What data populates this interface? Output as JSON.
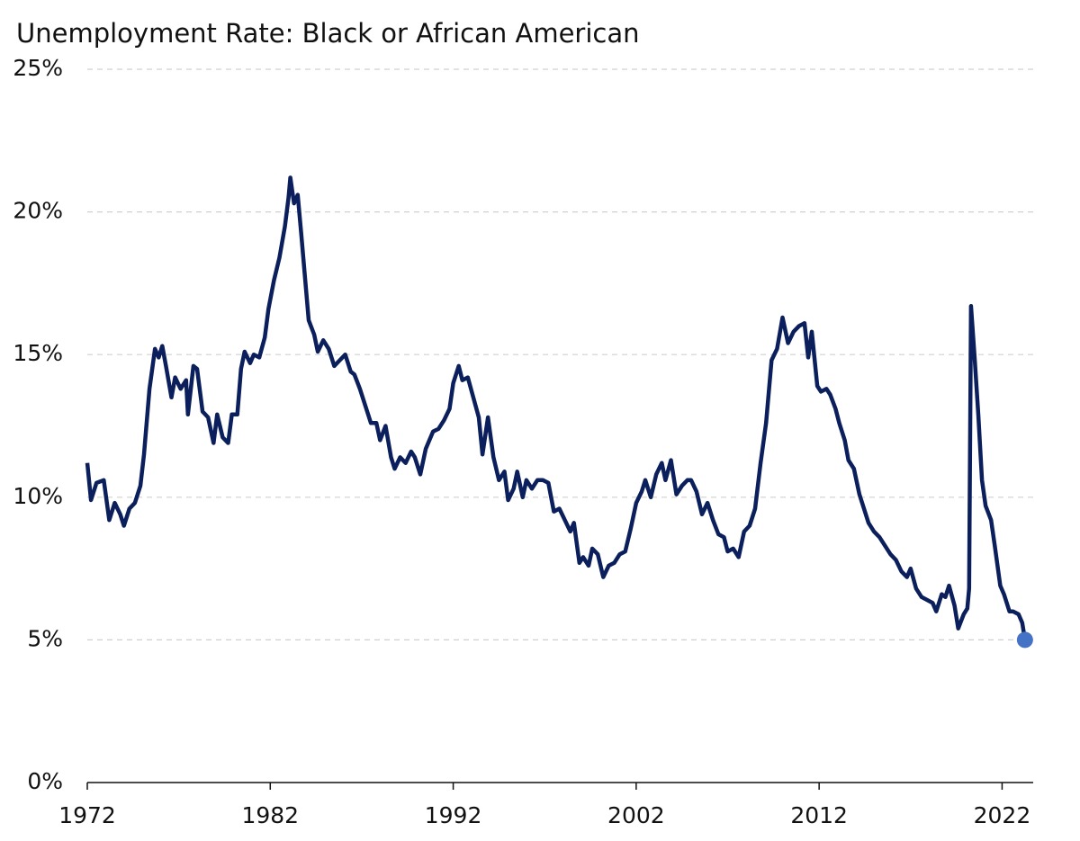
{
  "chart_data": {
    "type": "line",
    "title": "Unemployment Rate: Black or African American",
    "x": [
      1972.0,
      1972.2,
      1972.5,
      1972.9,
      1973.2,
      1973.5,
      1973.8,
      1974.0,
      1974.3,
      1974.6,
      1974.9,
      1975.1,
      1975.4,
      1975.7,
      1975.9,
      1976.1,
      1976.3,
      1976.6,
      1976.8,
      1977.1,
      1977.4,
      1977.5,
      1977.8,
      1978.0,
      1978.3,
      1978.6,
      1978.9,
      1979.1,
      1979.4,
      1979.7,
      1979.9,
      1980.2,
      1980.4,
      1980.6,
      1980.9,
      1981.1,
      1981.4,
      1981.7,
      1981.9,
      1982.2,
      1982.5,
      1982.8,
      1983.0,
      1983.1,
      1983.3,
      1983.5,
      1983.7,
      1983.9,
      1984.1,
      1984.4,
      1984.6,
      1984.9,
      1985.2,
      1985.5,
      1985.8,
      1986.1,
      1986.4,
      1986.6,
      1986.9,
      1987.2,
      1987.5,
      1987.8,
      1988.0,
      1988.3,
      1988.6,
      1988.8,
      1989.1,
      1989.4,
      1989.7,
      1989.9,
      1990.2,
      1990.5,
      1990.9,
      1991.2,
      1991.5,
      1991.8,
      1992.0,
      1992.3,
      1992.5,
      1992.8,
      1993.1,
      1993.4,
      1993.6,
      1993.9,
      1994.2,
      1994.5,
      1994.8,
      1995.0,
      1995.3,
      1995.5,
      1995.8,
      1996.0,
      1996.3,
      1996.6,
      1996.9,
      1997.2,
      1997.5,
      1997.8,
      1998.1,
      1998.4,
      1998.6,
      1998.9,
      1999.1,
      1999.4,
      1999.6,
      1999.9,
      2000.2,
      2000.5,
      2000.8,
      2001.1,
      2001.4,
      2001.7,
      2002.0,
      2002.3,
      2002.5,
      2002.8,
      2003.1,
      2003.4,
      2003.6,
      2003.9,
      2004.2,
      2004.5,
      2004.8,
      2005.0,
      2005.3,
      2005.6,
      2005.9,
      2006.2,
      2006.5,
      2006.8,
      2007.0,
      2007.3,
      2007.6,
      2007.9,
      2008.2,
      2008.5,
      2008.8,
      2009.1,
      2009.4,
      2009.7,
      2010.0,
      2010.3,
      2010.6,
      2010.9,
      2011.2,
      2011.4,
      2011.6,
      2011.9,
      2012.1,
      2012.4,
      2012.6,
      2012.9,
      2013.1,
      2013.4,
      2013.6,
      2013.9,
      2014.2,
      2014.5,
      2014.7,
      2015.0,
      2015.3,
      2015.6,
      2015.9,
      2016.2,
      2016.5,
      2016.8,
      2017.0,
      2017.3,
      2017.6,
      2017.9,
      2018.2,
      2018.4,
      2018.7,
      2018.9,
      2019.1,
      2019.4,
      2019.6,
      2019.9,
      2020.1,
      2020.2,
      2020.3,
      2020.5,
      2020.7,
      2020.9,
      2021.1,
      2021.4,
      2021.6,
      2021.9,
      2022.1,
      2022.4,
      2022.6,
      2022.9,
      2023.1,
      2023.25
    ],
    "series": [
      {
        "color": "#0b1f5c",
        "highlight_color": "#4472c4",
        "values": [
          11.2,
          9.9,
          10.5,
          10.6,
          9.2,
          9.8,
          9.4,
          9.0,
          9.6,
          9.8,
          10.4,
          11.5,
          13.8,
          15.2,
          14.9,
          15.3,
          14.6,
          13.5,
          14.2,
          13.8,
          14.1,
          12.9,
          14.6,
          14.5,
          13.0,
          12.8,
          11.9,
          12.9,
          12.1,
          11.9,
          12.9,
          12.9,
          14.5,
          15.1,
          14.7,
          15.0,
          14.9,
          15.6,
          16.6,
          17.6,
          18.4,
          19.5,
          20.5,
          21.2,
          20.3,
          20.6,
          19.2,
          17.7,
          16.2,
          15.7,
          15.1,
          15.5,
          15.2,
          14.6,
          14.8,
          15.0,
          14.4,
          14.3,
          13.8,
          13.2,
          12.6,
          12.6,
          12.0,
          12.5,
          11.4,
          11.0,
          11.4,
          11.2,
          11.6,
          11.4,
          10.8,
          11.7,
          12.3,
          12.4,
          12.7,
          13.1,
          14.0,
          14.6,
          14.1,
          14.2,
          13.5,
          12.8,
          11.5,
          12.8,
          11.4,
          10.6,
          10.9,
          9.9,
          10.3,
          10.9,
          10.0,
          10.6,
          10.3,
          10.6,
          10.6,
          10.5,
          9.5,
          9.6,
          9.2,
          8.8,
          9.1,
          7.7,
          7.9,
          7.6,
          8.2,
          8.0,
          7.2,
          7.6,
          7.7,
          8.0,
          8.1,
          8.9,
          9.8,
          10.2,
          10.6,
          10.0,
          10.8,
          11.2,
          10.6,
          11.3,
          10.1,
          10.4,
          10.6,
          10.6,
          10.2,
          9.4,
          9.8,
          9.2,
          8.7,
          8.6,
          8.1,
          8.2,
          7.9,
          8.8,
          9.0,
          9.6,
          11.2,
          12.6,
          14.8,
          15.2,
          16.3,
          15.4,
          15.8,
          16.0,
          16.1,
          14.9,
          15.8,
          13.9,
          13.7,
          13.8,
          13.6,
          13.1,
          12.6,
          12.0,
          11.3,
          11.0,
          10.1,
          9.5,
          9.1,
          8.8,
          8.6,
          8.3,
          8.0,
          7.8,
          7.4,
          7.2,
          7.5,
          6.8,
          6.5,
          6.4,
          6.3,
          6.0,
          6.6,
          6.5,
          6.9,
          6.2,
          5.4,
          5.9,
          6.1,
          6.8,
          16.7,
          14.9,
          12.9,
          10.6,
          9.7,
          9.2,
          8.3,
          6.9,
          6.6,
          6.0,
          6.0,
          5.9,
          5.6,
          5.0
        ]
      }
    ],
    "xlim": [
      1972,
      2023.7
    ],
    "xticks": [
      1972,
      1982,
      1992,
      2002,
      2012,
      2022
    ],
    "ylim": [
      0,
      25
    ],
    "yticks": [
      {
        "value": 0,
        "label": "0%"
      },
      {
        "value": 5,
        "label": "5%"
      },
      {
        "value": 10,
        "label": "10%"
      },
      {
        "value": 15,
        "label": "15%"
      },
      {
        "value": 20,
        "label": "20%"
      },
      {
        "value": 25,
        "label": "25%"
      }
    ],
    "grid": true
  }
}
